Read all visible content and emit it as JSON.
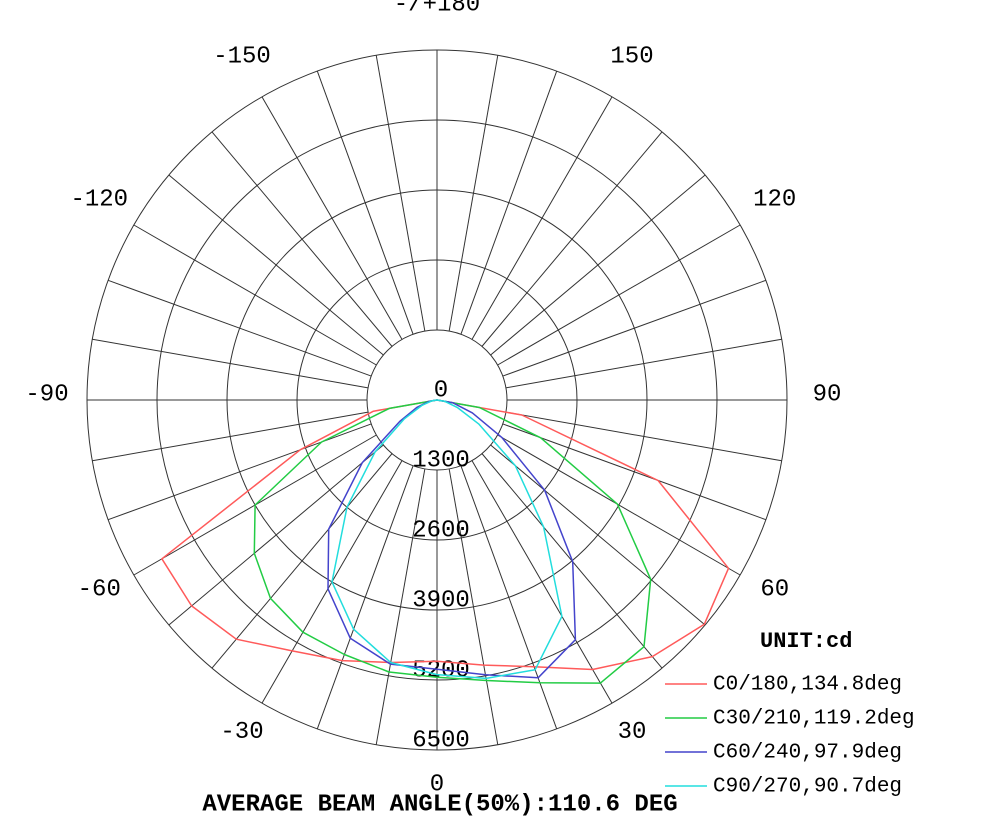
{
  "chart_data": {
    "type": "polar",
    "rlim": [
      0,
      6500
    ],
    "rticks": [
      0,
      1300,
      2600,
      3900,
      5200,
      6500
    ],
    "angle_ticks": [
      {
        "value": 180,
        "label": "-/+180"
      },
      -150,
      -120,
      -90,
      -60,
      -30,
      0,
      30,
      60,
      90,
      120,
      150
    ],
    "angles": [
      -90,
      -80,
      -70,
      -60,
      -50,
      -40,
      -30,
      -20,
      -10,
      0,
      10,
      20,
      30,
      40,
      50,
      60,
      70,
      80,
      90
    ],
    "unit_label": "UNIT:cd",
    "footer": "AVERAGE BEAM ANGLE(50%):110.6 DEG",
    "series": [
      {
        "name": "C0/180,134.8deg",
        "color": "#ff5a5a",
        "values": [
          0,
          1200,
          2700,
          5900,
          5950,
          5800,
          5380,
          5150,
          4950,
          4850,
          5000,
          5270,
          5780,
          6220,
          6480,
          6250,
          4370,
          1600,
          0
        ]
      },
      {
        "name": "C30/210,119.2deg",
        "color": "#22cc44",
        "values": [
          0,
          900,
          2280,
          3900,
          4430,
          4810,
          4980,
          5030,
          5130,
          5150,
          5290,
          5590,
          6070,
          5980,
          5180,
          3870,
          2050,
          800,
          0
        ]
      },
      {
        "name": "C60/240,97.9deg",
        "color": "#4444cc",
        "values": [
          0,
          150,
          400,
          800,
          1810,
          3130,
          4050,
          4710,
          4980,
          5000,
          5180,
          5490,
          5140,
          3920,
          2610,
          1390,
          700,
          300,
          0
        ]
      },
      {
        "name": "C90/270,90.7deg",
        "color": "#22dddd",
        "values": [
          0,
          100,
          300,
          700,
          1500,
          2600,
          3900,
          4530,
          4950,
          5100,
          5250,
          5330,
          4640,
          3080,
          1900,
          900,
          400,
          150,
          0
        ]
      }
    ]
  }
}
